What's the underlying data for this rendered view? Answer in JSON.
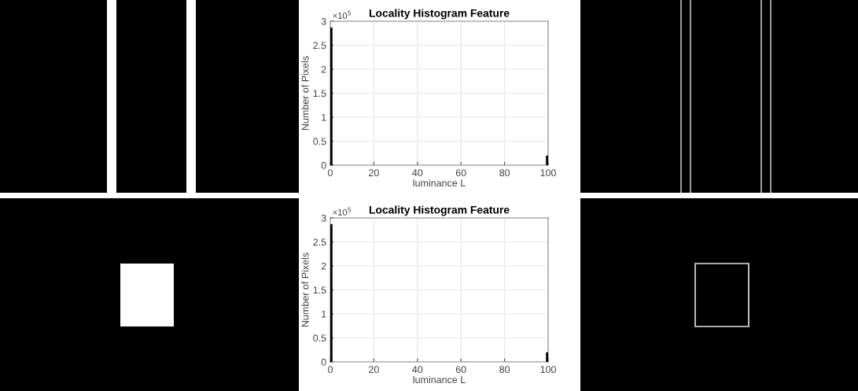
{
  "chart_data": [
    {
      "type": "histogram",
      "title": "Locality Histogram Feature",
      "xlabel": "luminance L",
      "ylabel": "Number of Pixels",
      "bins": [
        0,
        1,
        99,
        100
      ],
      "values": [
        2.87,
        0,
        0.2
      ],
      "color": "#000000",
      "xlim": [
        0,
        100
      ],
      "xticks": [
        0,
        20,
        40,
        60,
        80,
        100
      ],
      "ylim": [
        0,
        3
      ],
      "yticks": [
        0,
        0.5,
        1,
        1.5,
        2,
        2.5,
        3
      ],
      "grid": true,
      "annotations": [
        "×10$^{5}$"
      ]
    },
    {
      "type": "histogram",
      "title": "Locality Histogram Feature",
      "xlabel": "luminance L",
      "ylabel": "Number of Pixels",
      "bins": [
        0,
        1,
        99,
        100
      ],
      "values": [
        2.87,
        0,
        0.2
      ],
      "color": "#000000",
      "xlim": [
        0,
        100
      ],
      "xticks": [
        0,
        20,
        40,
        60,
        80,
        100
      ],
      "ylim": [
        0,
        3
      ],
      "yticks": [
        0,
        0.5,
        1,
        1.5,
        2,
        2.5,
        3
      ],
      "grid": true,
      "annotations": [
        "×10$^{5}$"
      ]
    }
  ]
}
